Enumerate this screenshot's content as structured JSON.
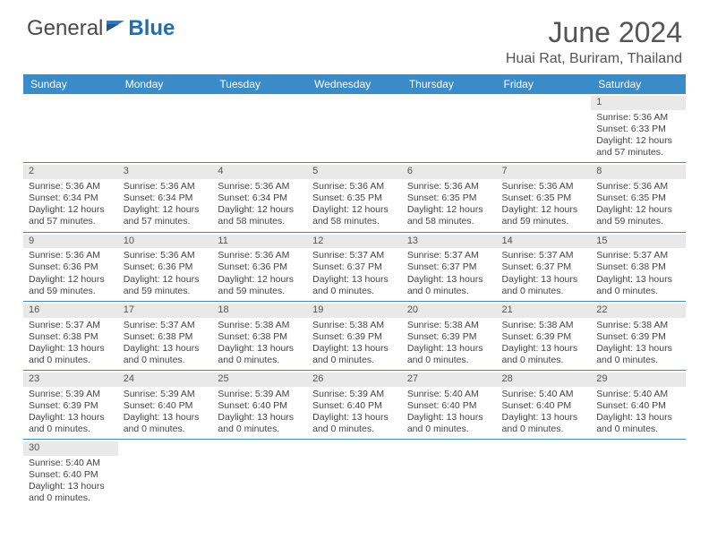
{
  "brand": {
    "part1": "General",
    "part2": "Blue"
  },
  "title": "June 2024",
  "location": "Huai Rat, Buriram, Thailand",
  "colors": {
    "header_bg": "#3b8bc9",
    "header_text": "#ffffff",
    "daynum_bg": "#e9e9e9",
    "border": "#3b8bc9",
    "text": "#444444"
  },
  "weekdays": [
    "Sunday",
    "Monday",
    "Tuesday",
    "Wednesday",
    "Thursday",
    "Friday",
    "Saturday"
  ],
  "days": {
    "1": {
      "sunrise": "5:36 AM",
      "sunset": "6:33 PM",
      "daylight": "12 hours and 57 minutes."
    },
    "2": {
      "sunrise": "5:36 AM",
      "sunset": "6:34 PM",
      "daylight": "12 hours and 57 minutes."
    },
    "3": {
      "sunrise": "5:36 AM",
      "sunset": "6:34 PM",
      "daylight": "12 hours and 57 minutes."
    },
    "4": {
      "sunrise": "5:36 AM",
      "sunset": "6:34 PM",
      "daylight": "12 hours and 58 minutes."
    },
    "5": {
      "sunrise": "5:36 AM",
      "sunset": "6:35 PM",
      "daylight": "12 hours and 58 minutes."
    },
    "6": {
      "sunrise": "5:36 AM",
      "sunset": "6:35 PM",
      "daylight": "12 hours and 58 minutes."
    },
    "7": {
      "sunrise": "5:36 AM",
      "sunset": "6:35 PM",
      "daylight": "12 hours and 59 minutes."
    },
    "8": {
      "sunrise": "5:36 AM",
      "sunset": "6:35 PM",
      "daylight": "12 hours and 59 minutes."
    },
    "9": {
      "sunrise": "5:36 AM",
      "sunset": "6:36 PM",
      "daylight": "12 hours and 59 minutes."
    },
    "10": {
      "sunrise": "5:36 AM",
      "sunset": "6:36 PM",
      "daylight": "12 hours and 59 minutes."
    },
    "11": {
      "sunrise": "5:36 AM",
      "sunset": "6:36 PM",
      "daylight": "12 hours and 59 minutes."
    },
    "12": {
      "sunrise": "5:37 AM",
      "sunset": "6:37 PM",
      "daylight": "13 hours and 0 minutes."
    },
    "13": {
      "sunrise": "5:37 AM",
      "sunset": "6:37 PM",
      "daylight": "13 hours and 0 minutes."
    },
    "14": {
      "sunrise": "5:37 AM",
      "sunset": "6:37 PM",
      "daylight": "13 hours and 0 minutes."
    },
    "15": {
      "sunrise": "5:37 AM",
      "sunset": "6:38 PM",
      "daylight": "13 hours and 0 minutes."
    },
    "16": {
      "sunrise": "5:37 AM",
      "sunset": "6:38 PM",
      "daylight": "13 hours and 0 minutes."
    },
    "17": {
      "sunrise": "5:37 AM",
      "sunset": "6:38 PM",
      "daylight": "13 hours and 0 minutes."
    },
    "18": {
      "sunrise": "5:38 AM",
      "sunset": "6:38 PM",
      "daylight": "13 hours and 0 minutes."
    },
    "19": {
      "sunrise": "5:38 AM",
      "sunset": "6:39 PM",
      "daylight": "13 hours and 0 minutes."
    },
    "20": {
      "sunrise": "5:38 AM",
      "sunset": "6:39 PM",
      "daylight": "13 hours and 0 minutes."
    },
    "21": {
      "sunrise": "5:38 AM",
      "sunset": "6:39 PM",
      "daylight": "13 hours and 0 minutes."
    },
    "22": {
      "sunrise": "5:38 AM",
      "sunset": "6:39 PM",
      "daylight": "13 hours and 0 minutes."
    },
    "23": {
      "sunrise": "5:39 AM",
      "sunset": "6:39 PM",
      "daylight": "13 hours and 0 minutes."
    },
    "24": {
      "sunrise": "5:39 AM",
      "sunset": "6:40 PM",
      "daylight": "13 hours and 0 minutes."
    },
    "25": {
      "sunrise": "5:39 AM",
      "sunset": "6:40 PM",
      "daylight": "13 hours and 0 minutes."
    },
    "26": {
      "sunrise": "5:39 AM",
      "sunset": "6:40 PM",
      "daylight": "13 hours and 0 minutes."
    },
    "27": {
      "sunrise": "5:40 AM",
      "sunset": "6:40 PM",
      "daylight": "13 hours and 0 minutes."
    },
    "28": {
      "sunrise": "5:40 AM",
      "sunset": "6:40 PM",
      "daylight": "13 hours and 0 minutes."
    },
    "29": {
      "sunrise": "5:40 AM",
      "sunset": "6:40 PM",
      "daylight": "13 hours and 0 minutes."
    },
    "30": {
      "sunrise": "5:40 AM",
      "sunset": "6:40 PM",
      "daylight": "13 hours and 0 minutes."
    }
  },
  "layout": {
    "first_weekday_index": 6,
    "num_days": 30
  },
  "labels": {
    "sunrise": "Sunrise:",
    "sunset": "Sunset:",
    "daylight": "Daylight:"
  }
}
